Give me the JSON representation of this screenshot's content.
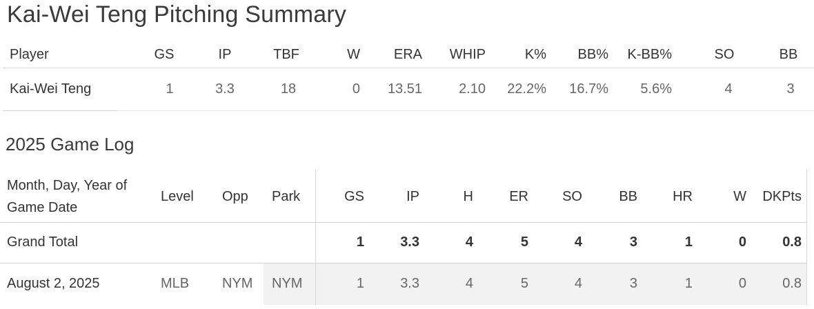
{
  "title": "Kai-Wei Teng Pitching Summary",
  "summary": {
    "headers": [
      "Player",
      "GS",
      "IP",
      "TBF",
      "W",
      "ERA",
      "WHIP",
      "K%",
      "BB%",
      "K-BB%",
      "SO",
      "BB"
    ],
    "row": [
      "Kai-Wei Teng",
      "1",
      "3.3",
      "18",
      "0",
      "13.51",
      "2.10",
      "22.2%",
      "16.7%",
      "5.6%",
      "4",
      "3"
    ]
  },
  "gamelog": {
    "title": "2025 Game Log",
    "headers": {
      "date_line1": "Month, Day, Year of",
      "date_line2": "Game Date",
      "level": "Level",
      "opp": "Opp",
      "park": "Park",
      "stats": [
        "GS",
        "IP",
        "H",
        "ER",
        "SO",
        "BB",
        "HR",
        "W",
        "DKPts"
      ]
    },
    "total": {
      "label": "Grand Total",
      "stats": [
        "1",
        "3.3",
        "4",
        "5",
        "4",
        "3",
        "1",
        "0",
        "0.8"
      ]
    },
    "rows": [
      {
        "date": "August 2, 2025",
        "level": "MLB",
        "opp": "NYM",
        "park": "NYM",
        "stats": [
          "1",
          "3.3",
          "4",
          "5",
          "4",
          "3",
          "1",
          "0",
          "0.8"
        ]
      }
    ]
  },
  "colors": {
    "shade": "#f2f2f2",
    "divider": "#dcdcdc"
  }
}
